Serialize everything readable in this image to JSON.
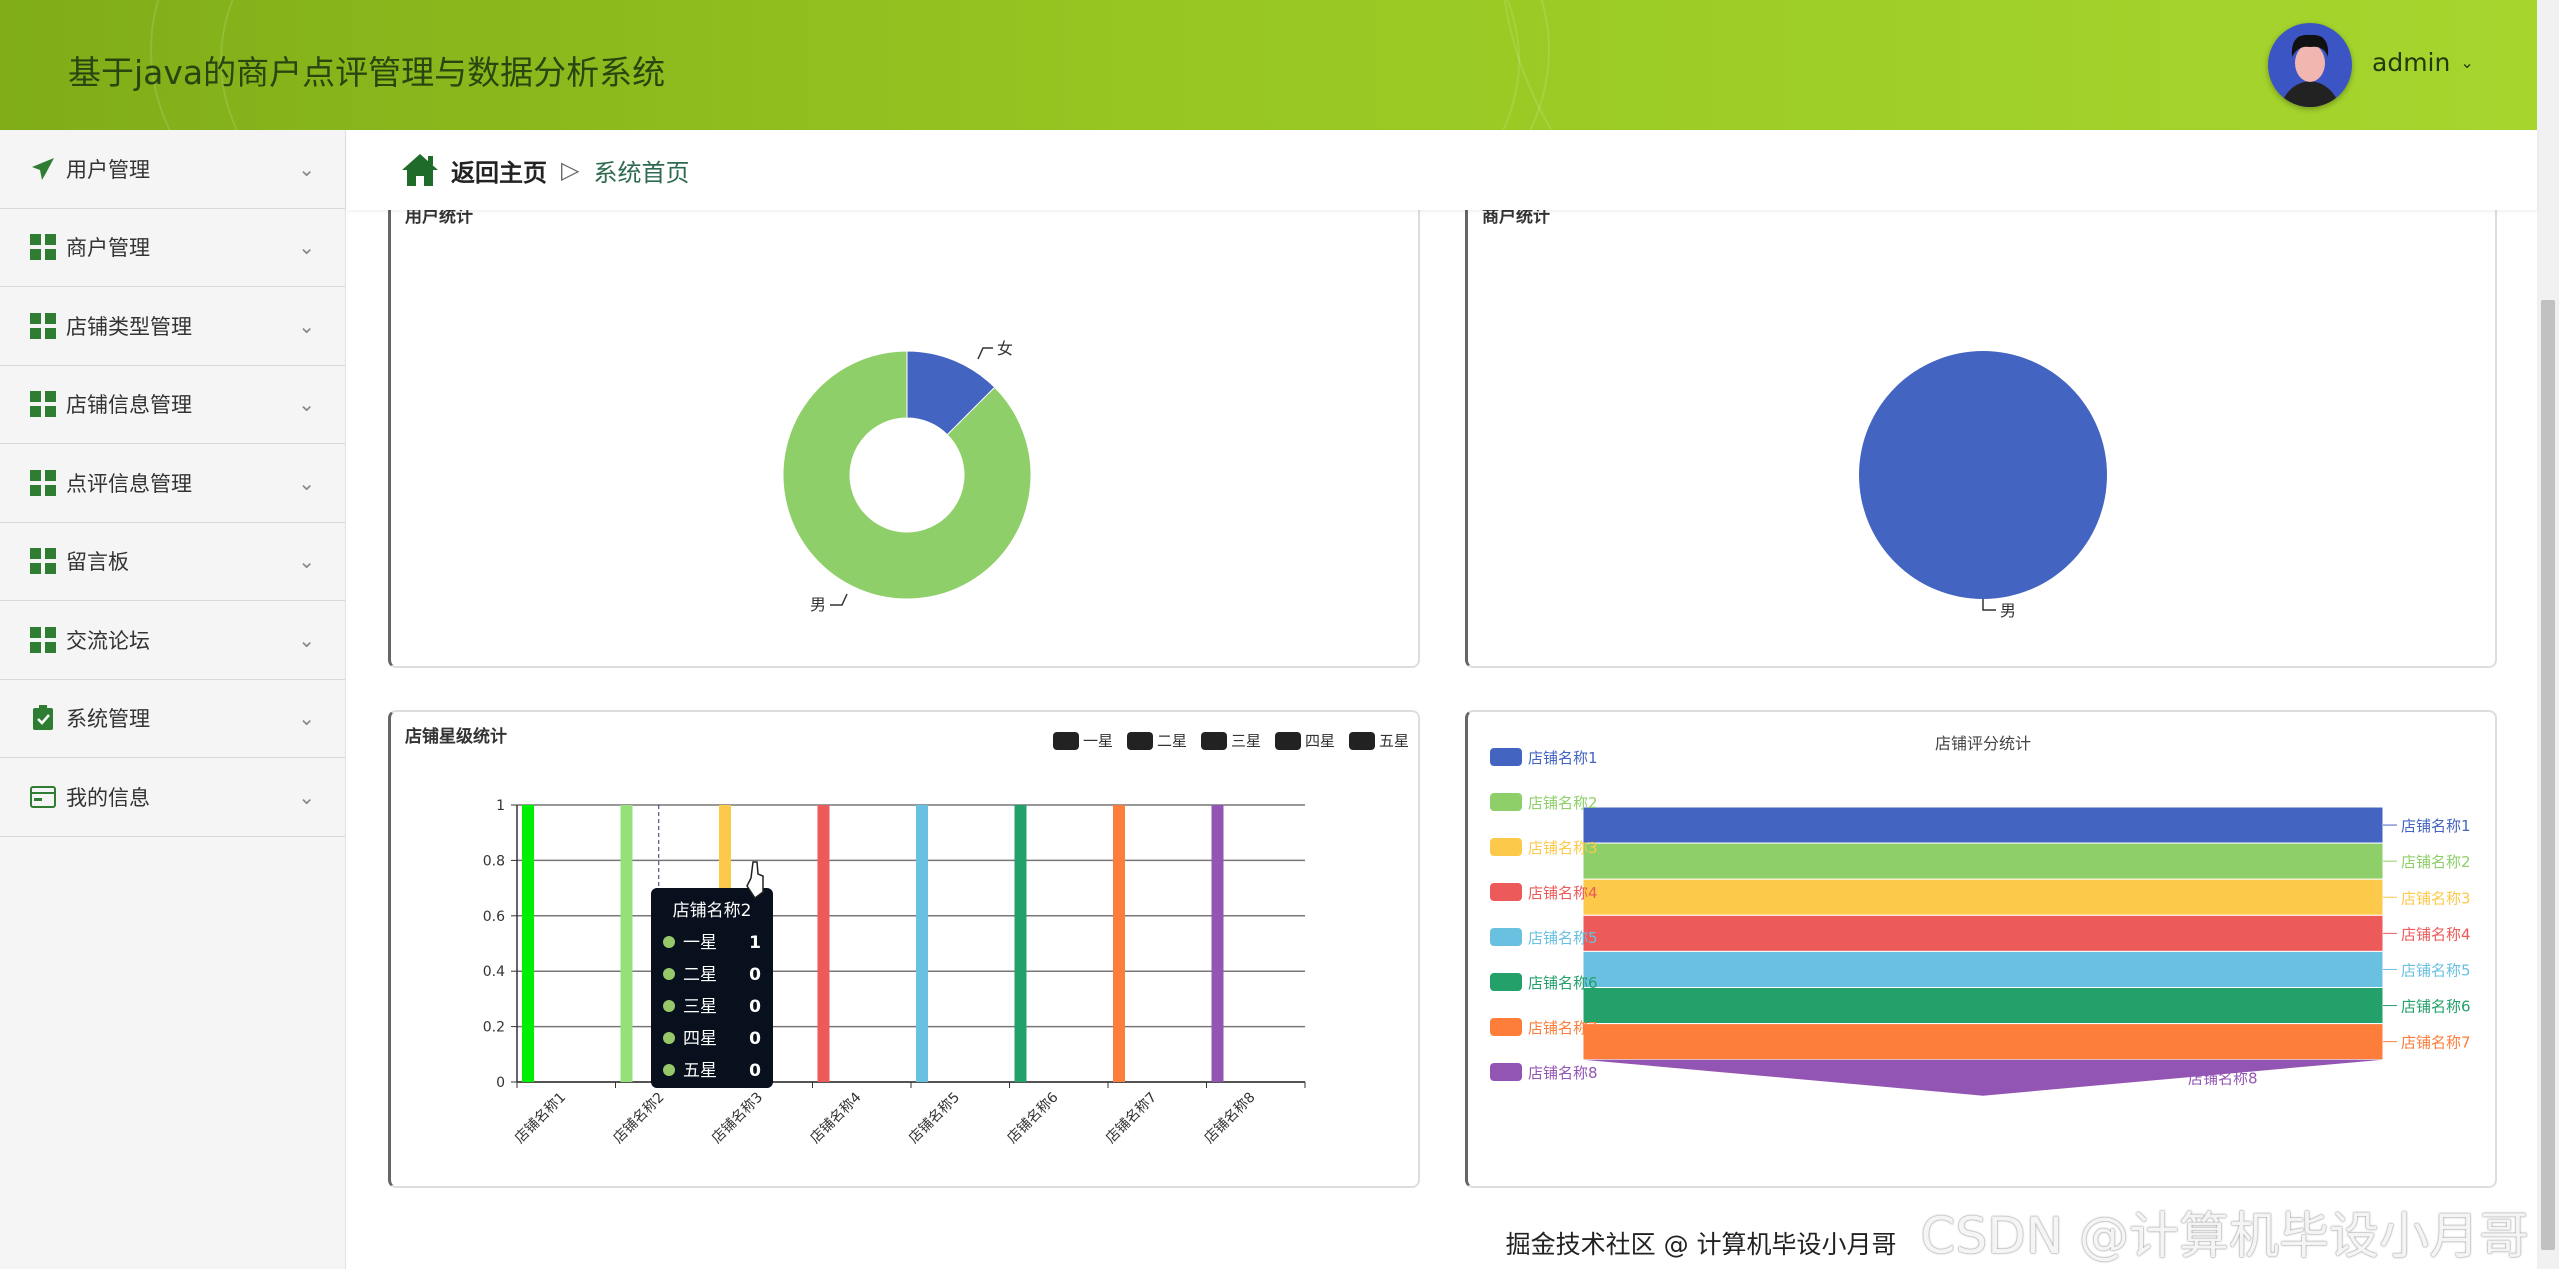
{
  "header": {
    "title": "基于java的商户点评管理与数据分析系统",
    "username": "admin",
    "avatar_icon": "avatar-image",
    "dropdown_icon": "chevron-down-icon"
  },
  "sidebar": {
    "items": [
      {
        "label": "用户管理",
        "icon": "paper-plane-icon"
      },
      {
        "label": "商户管理",
        "icon": "grid-icon"
      },
      {
        "label": "店铺类型管理",
        "icon": "grid-icon"
      },
      {
        "label": "店铺信息管理",
        "icon": "grid-icon"
      },
      {
        "label": "点评信息管理",
        "icon": "grid-icon"
      },
      {
        "label": "留言板",
        "icon": "grid-icon"
      },
      {
        "label": "交流论坛",
        "icon": "grid-icon"
      },
      {
        "label": "系统管理",
        "icon": "clipboard-check-icon"
      },
      {
        "label": "我的信息",
        "icon": "card-icon"
      }
    ]
  },
  "breadcrumb": {
    "home": "返回主页",
    "separator": "▷",
    "current": "系统首页"
  },
  "colors": {
    "accent": "#2e7d32",
    "header": "#97c622"
  },
  "chart_data": [
    {
      "type": "pie",
      "variant": "donut",
      "title": "用户统计",
      "legend": [
        "女",
        "男"
      ],
      "legend_placement": "top-right",
      "slices": [
        {
          "name": "女",
          "value": 1,
          "color": "#4464c2"
        },
        {
          "name": "男",
          "value": 7,
          "color": "#8ecf69"
        }
      ]
    },
    {
      "type": "pie",
      "title": "商户统计",
      "legend": [
        "男"
      ],
      "legend_placement": "top-right",
      "slices": [
        {
          "name": "男",
          "value": 1,
          "color": "#4464c2"
        }
      ]
    },
    {
      "type": "bar",
      "title": "店铺星级统计",
      "legend_placement": "top-right",
      "ylim": [
        0,
        1
      ],
      "grid": true,
      "yticks": [
        "0",
        "0.2",
        "0.4",
        "0.6",
        "0.8",
        "1"
      ],
      "categories": [
        "店铺名称1",
        "店铺名称2",
        "店铺名称3",
        "店铺名称4",
        "店铺名称5",
        "店铺名称6",
        "店铺名称7",
        "店铺名称8"
      ],
      "bar_colors": [
        "#00ee00",
        "#96e07a",
        "#fdc94a",
        "#ec5a5a",
        "#69c0e0",
        "#24a06a",
        "#fd7d3b",
        "#9355b3"
      ],
      "series": [
        {
          "name": "一星",
          "values": [
            1,
            1,
            1,
            1,
            1,
            1,
            1,
            1
          ]
        },
        {
          "name": "二星",
          "values": [
            0,
            0,
            0,
            0,
            0,
            0,
            0,
            0
          ]
        },
        {
          "name": "三星",
          "values": [
            0,
            0,
            0,
            0,
            0,
            0,
            0,
            0
          ]
        },
        {
          "name": "四星",
          "values": [
            0,
            0,
            0,
            0,
            0,
            0,
            0,
            0
          ]
        },
        {
          "name": "五星",
          "values": [
            0,
            0,
            0,
            0,
            0,
            0,
            0,
            0
          ]
        }
      ],
      "tooltip": {
        "title": "店铺名称2",
        "rows": [
          {
            "name": "一星",
            "value": "1"
          },
          {
            "name": "二星",
            "value": "0"
          },
          {
            "name": "三星",
            "value": "0"
          },
          {
            "name": "四星",
            "value": "0"
          },
          {
            "name": "五星",
            "value": "0"
          }
        ]
      }
    },
    {
      "type": "funnel",
      "title": "店铺评分统计",
      "legend_placement": "left",
      "categories": [
        "店铺名称1",
        "店铺名称2",
        "店铺名称3",
        "店铺名称4",
        "店铺名称5",
        "店铺名称6",
        "店铺名称7",
        "店铺名称8"
      ],
      "values": [
        1,
        1,
        1,
        1,
        1,
        1,
        1,
        1
      ],
      "colors": [
        "#4464c2",
        "#8ecf69",
        "#fdc94a",
        "#ec5a5a",
        "#69c0e0",
        "#24a06a",
        "#fd7d3b",
        "#9355b3"
      ]
    }
  ],
  "watermark": {
    "large": "CSDN @计算机毕设小月哥",
    "small": "掘金技术社区 @ 计算机毕设小月哥"
  }
}
